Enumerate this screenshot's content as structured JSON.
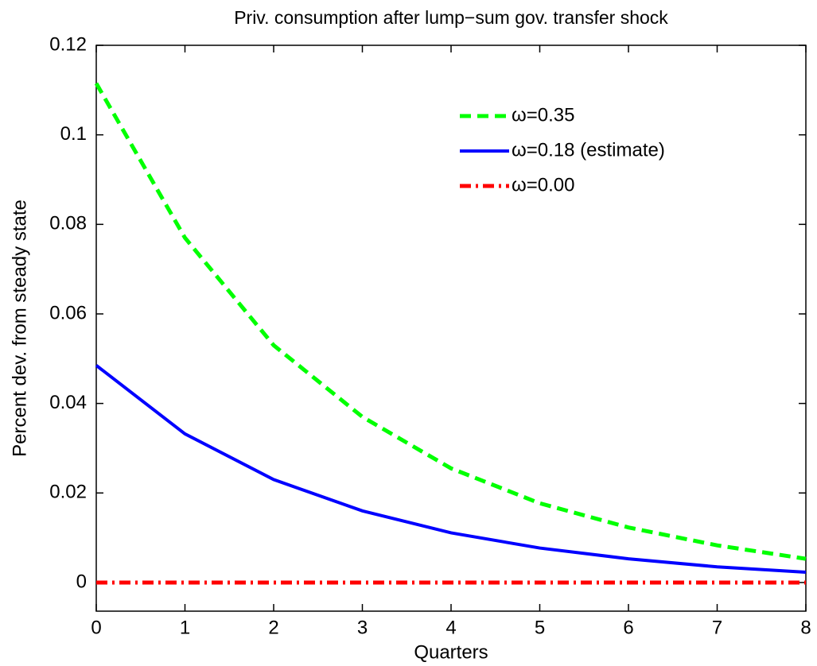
{
  "chart_data": {
    "type": "line",
    "title": "Priv. consumption after lump−sum gov. transfer shock",
    "x_label": "Quarters",
    "y_label": "Percent dev. from steady state",
    "x": [
      0,
      1,
      2,
      3,
      4,
      5,
      6,
      7,
      8
    ],
    "series": [
      {
        "name": "ω=0.35",
        "color": "#00ff00",
        "style": "dashed",
        "values": [
          0.1115,
          0.077,
          0.053,
          0.037,
          0.0255,
          0.0177,
          0.0123,
          0.0083,
          0.0053
        ]
      },
      {
        "name": "ω=0.18 (estimate)",
        "color": "#0000ff",
        "style": "solid",
        "values": [
          0.0485,
          0.0332,
          0.023,
          0.016,
          0.0111,
          0.0077,
          0.0053,
          0.0035,
          0.0023
        ]
      },
      {
        "name": "ω=0.00",
        "color": "#ff0000",
        "style": "dashdot",
        "values": [
          0,
          0,
          0,
          0,
          0,
          0,
          0,
          0,
          0
        ]
      }
    ],
    "xlim": [
      0,
      8
    ],
    "xticks": [
      0,
      1,
      2,
      3,
      4,
      5,
      6,
      7,
      8
    ],
    "ylim": [
      -0.0064,
      0.12
    ],
    "yticks": [
      0,
      0.02,
      0.04,
      0.06,
      0.08,
      0.1,
      0.12
    ],
    "legend": "upper right",
    "grid": false
  }
}
